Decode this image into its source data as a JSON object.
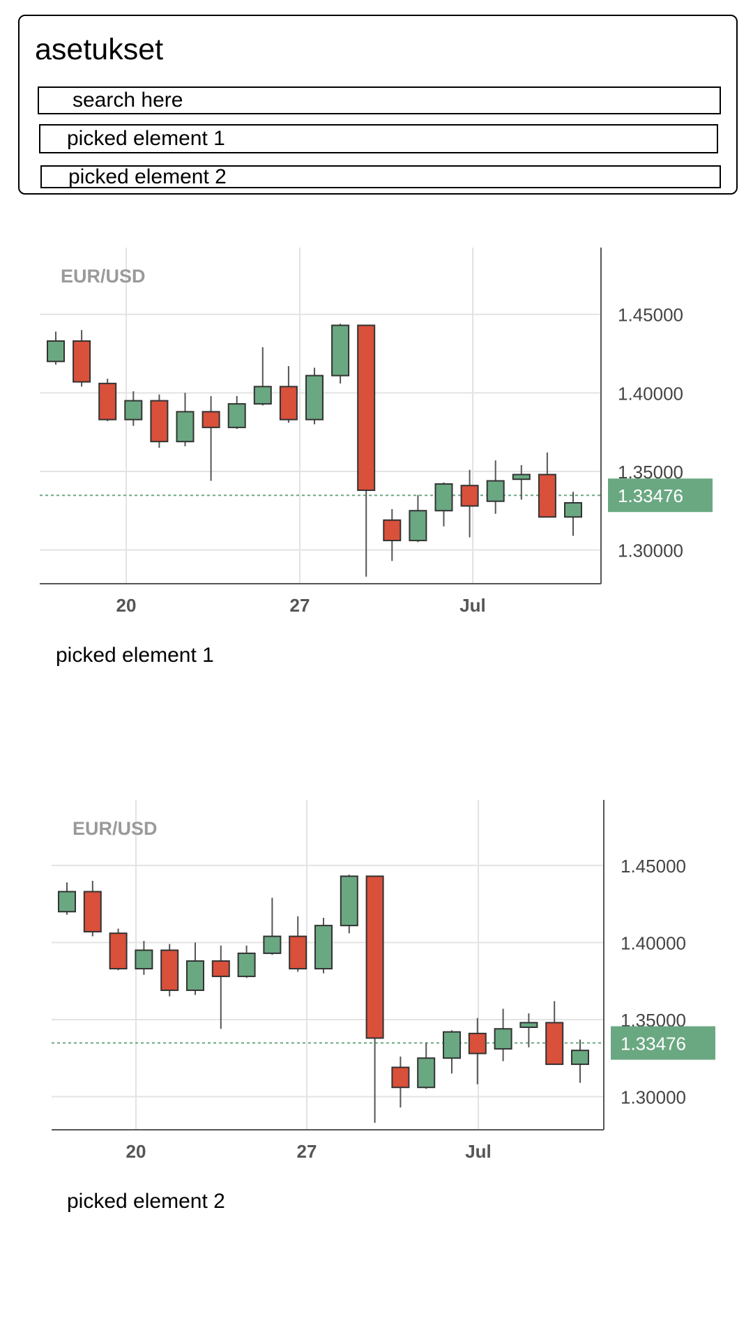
{
  "settings": {
    "title": "asetukset",
    "search_placeholder": "search here",
    "picked_items": [
      "picked element 1",
      "picked element 2"
    ]
  },
  "colors": {
    "up": "#6aa882",
    "down": "#d9503b",
    "price_tag": "#6aa882"
  },
  "chart_data": [
    {
      "type": "candlestick",
      "title": "EUR/USD",
      "x_ticks": [
        "20",
        "27",
        "Jul"
      ],
      "y_ticks": [
        "1.45000",
        "1.40000",
        "1.35000",
        "1.30000"
      ],
      "ylim": [
        1.2785,
        1.4925
      ],
      "current_price": "1.33476",
      "current_value": 1.3348,
      "grid": true,
      "candles": [
        {
          "open": 1.42,
          "high": 1.439,
          "low": 1.418,
          "close": 1.433
        },
        {
          "open": 1.433,
          "high": 1.44,
          "low": 1.404,
          "close": 1.407
        },
        {
          "open": 1.406,
          "high": 1.409,
          "low": 1.382,
          "close": 1.383
        },
        {
          "open": 1.383,
          "high": 1.401,
          "low": 1.379,
          "close": 1.395
        },
        {
          "open": 1.395,
          "high": 1.399,
          "low": 1.365,
          "close": 1.369
        },
        {
          "open": 1.369,
          "high": 1.4,
          "low": 1.366,
          "close": 1.388
        },
        {
          "open": 1.388,
          "high": 1.398,
          "low": 1.344,
          "close": 1.378
        },
        {
          "open": 1.378,
          "high": 1.398,
          "low": 1.377,
          "close": 1.393
        },
        {
          "open": 1.393,
          "high": 1.429,
          "low": 1.392,
          "close": 1.404
        },
        {
          "open": 1.404,
          "high": 1.417,
          "low": 1.381,
          "close": 1.383
        },
        {
          "open": 1.383,
          "high": 1.416,
          "low": 1.38,
          "close": 1.411
        },
        {
          "open": 1.411,
          "high": 1.444,
          "low": 1.406,
          "close": 1.443
        },
        {
          "open": 1.443,
          "high": 1.443,
          "low": 1.283,
          "close": 1.338
        },
        {
          "open": 1.319,
          "high": 1.326,
          "low": 1.293,
          "close": 1.306
        },
        {
          "open": 1.306,
          "high": 1.335,
          "low": 1.305,
          "close": 1.325
        },
        {
          "open": 1.325,
          "high": 1.343,
          "low": 1.315,
          "close": 1.342
        },
        {
          "open": 1.341,
          "high": 1.351,
          "low": 1.308,
          "close": 1.328
        },
        {
          "open": 1.331,
          "high": 1.357,
          "low": 1.323,
          "close": 1.344
        },
        {
          "open": 1.345,
          "high": 1.354,
          "low": 1.332,
          "close": 1.348
        },
        {
          "open": 1.348,
          "high": 1.362,
          "low": 1.321,
          "close": 1.321
        },
        {
          "open": 1.321,
          "high": 1.337,
          "low": 1.309,
          "close": 1.33
        }
      ]
    },
    {
      "type": "candlestick",
      "title": "EUR/USD",
      "x_ticks": [
        "20",
        "27",
        "Jul"
      ],
      "y_ticks": [
        "1.45000",
        "1.40000",
        "1.35000",
        "1.30000"
      ],
      "ylim": [
        1.2785,
        1.4925
      ],
      "current_price": "1.33476",
      "current_value": 1.3348,
      "grid": true,
      "candles": [
        {
          "open": 1.42,
          "high": 1.439,
          "low": 1.418,
          "close": 1.433
        },
        {
          "open": 1.433,
          "high": 1.44,
          "low": 1.404,
          "close": 1.407
        },
        {
          "open": 1.406,
          "high": 1.409,
          "low": 1.382,
          "close": 1.383
        },
        {
          "open": 1.383,
          "high": 1.401,
          "low": 1.379,
          "close": 1.395
        },
        {
          "open": 1.395,
          "high": 1.399,
          "low": 1.365,
          "close": 1.369
        },
        {
          "open": 1.369,
          "high": 1.4,
          "low": 1.366,
          "close": 1.388
        },
        {
          "open": 1.388,
          "high": 1.398,
          "low": 1.344,
          "close": 1.378
        },
        {
          "open": 1.378,
          "high": 1.398,
          "low": 1.377,
          "close": 1.393
        },
        {
          "open": 1.393,
          "high": 1.429,
          "low": 1.392,
          "close": 1.404
        },
        {
          "open": 1.404,
          "high": 1.417,
          "low": 1.381,
          "close": 1.383
        },
        {
          "open": 1.383,
          "high": 1.416,
          "low": 1.38,
          "close": 1.411
        },
        {
          "open": 1.411,
          "high": 1.444,
          "low": 1.406,
          "close": 1.443
        },
        {
          "open": 1.443,
          "high": 1.443,
          "low": 1.283,
          "close": 1.338
        },
        {
          "open": 1.319,
          "high": 1.326,
          "low": 1.293,
          "close": 1.306
        },
        {
          "open": 1.306,
          "high": 1.335,
          "low": 1.305,
          "close": 1.325
        },
        {
          "open": 1.325,
          "high": 1.343,
          "low": 1.315,
          "close": 1.342
        },
        {
          "open": 1.341,
          "high": 1.351,
          "low": 1.308,
          "close": 1.328
        },
        {
          "open": 1.331,
          "high": 1.357,
          "low": 1.323,
          "close": 1.344
        },
        {
          "open": 1.345,
          "high": 1.354,
          "low": 1.332,
          "close": 1.348
        },
        {
          "open": 1.348,
          "high": 1.362,
          "low": 1.321,
          "close": 1.321
        },
        {
          "open": 1.321,
          "high": 1.337,
          "low": 1.309,
          "close": 1.33
        }
      ]
    }
  ]
}
